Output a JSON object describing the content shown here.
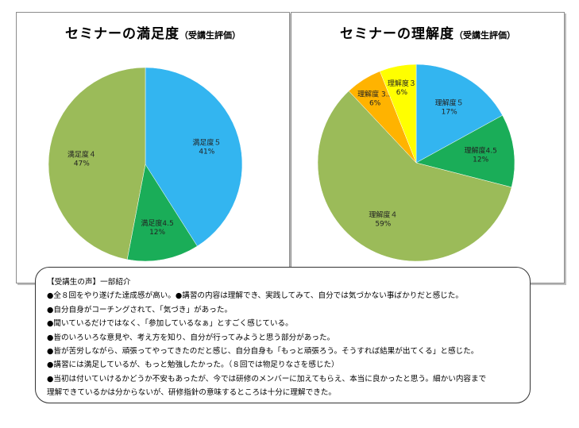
{
  "chart_data": [
    {
      "type": "pie",
      "title": "セミナーの満足度",
      "subtitle": "（受講生評価）",
      "slices": [
        {
          "name": "満足度５",
          "value": 41,
          "pct": "41%",
          "color": "#33b5f0"
        },
        {
          "name": "満足度4.5",
          "value": 12,
          "pct": "12%",
          "color": "#1aad58"
        },
        {
          "name": "満足度４",
          "value": 47,
          "pct": "47%",
          "color": "#9bbb59"
        }
      ]
    },
    {
      "type": "pie",
      "title": "セミナーの理解度",
      "subtitle": "（受講生評価）",
      "slices": [
        {
          "name": "理解度５",
          "value": 17,
          "pct": "17%",
          "color": "#33b5f0"
        },
        {
          "name": "理解度4.5",
          "value": 12,
          "pct": "12%",
          "color": "#1aad58"
        },
        {
          "name": "理解度４",
          "value": 59,
          "pct": "59%",
          "color": "#9bbb59"
        },
        {
          "name": "理解度 3.5",
          "value": 6,
          "pct": "6%",
          "color": "#ffb300"
        },
        {
          "name": "理解度３",
          "value": 6,
          "pct": "6%",
          "color": "#ffff00"
        }
      ]
    }
  ],
  "comments": {
    "title": "【受講生の声】一部紹介",
    "items": [
      "●全８回をやり遂げた達成感が高い。●講習の内容は理解でき、実践してみて、自分では気づかない事ばかりだと感じた。",
      "●自分自身がコーチングされて、「気づき」があった。",
      "●聞いているだけではなく、「参加しているなぁ」とすごく感じている。",
      "●皆のいろいろな意見や、考え方を知り、自分が行ってみようと思う部分があった。",
      "●皆が苦労しながら、頑張ってやってきたのだと感じ、自分自身も「もっと頑張ろう。そうすれば結果が出てくる」と感じた。",
      "●講習には満足しているが、もっと勉強したかった。（８回では物足りなさを感じた）",
      "●当初は付いていけるかどうか不安もあったが、今では研修のメンバーに加えてもらえ、本当に良かったと思う。細かい内容まで"
    ],
    "continuation": "理解できているかは分からないが、研修指針の意味するところは十分に理解できた。"
  }
}
